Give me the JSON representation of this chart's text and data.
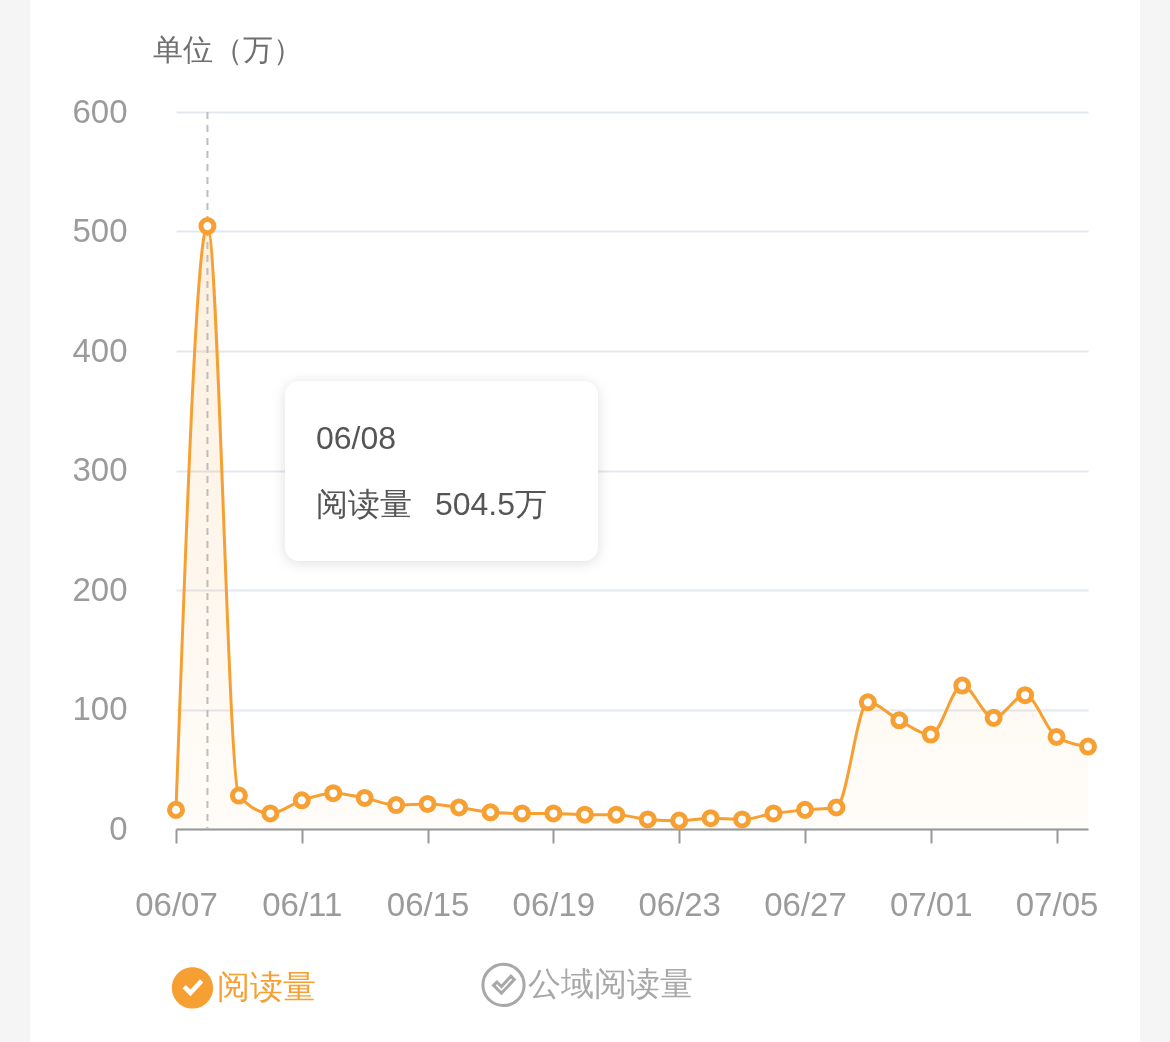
{
  "chart_data": {
    "type": "area",
    "ylabel": "单位（万）",
    "x": [
      "--06-07",
      "--06-08",
      "--06-09",
      "--06-10",
      "--06-11",
      "--06-12",
      "--06-13",
      "--06-14",
      "--06-15",
      "--06-16",
      "--06-17",
      "--06-18",
      "--06-19",
      "--06-20",
      "--06-21",
      "--06-22",
      "--06-23",
      "--06-24",
      "--06-25",
      "--06-26",
      "--06-27",
      "--06-28",
      "--06-29",
      "--06-30",
      "--07-01",
      "--07-02",
      "--07-03",
      "--07-04",
      "--07-05",
      "--07-06"
    ],
    "series": [
      {
        "name": "阅读量",
        "color": "#f6a033",
        "values": [
          16,
          504.5,
          28,
          13,
          24,
          30,
          26,
          20,
          21,
          18,
          14,
          13,
          13,
          12,
          12,
          8,
          7,
          9,
          8,
          13,
          16,
          18,
          106,
          91,
          79,
          120,
          93,
          112,
          77,
          69
        ]
      },
      {
        "name": "公域阅读量",
        "color": "#a8a8a8",
        "values": [
          null,
          null,
          null,
          null,
          null,
          null,
          null,
          null,
          null,
          null,
          null,
          null,
          null,
          null,
          null,
          null,
          null,
          null,
          null,
          null,
          null,
          null,
          null,
          null,
          null,
          null,
          null,
          null,
          null,
          null
        ]
      }
    ],
    "xlim": [
      "--06-07",
      "--07-06"
    ],
    "xticks": [
      {
        "value": "--06-07",
        "label": "06/07"
      },
      {
        "value": "--06-11",
        "label": "06/11"
      },
      {
        "value": "--06-15",
        "label": "06/15"
      },
      {
        "value": "--06-19",
        "label": "06/19"
      },
      {
        "value": "--06-23",
        "label": "06/23"
      },
      {
        "value": "--06-27",
        "label": "06/27"
      },
      {
        "value": "--07-01",
        "label": "07/01"
      },
      {
        "value": "--07-05",
        "label": "07/05"
      }
    ],
    "ylim": [
      0,
      600
    ],
    "yticks": [
      0,
      100,
      200,
      300,
      400,
      500,
      600
    ],
    "grid": "y",
    "legend": "bottom",
    "marker": "circle",
    "line_style": "solid",
    "ref_lines": [
      {
        "axis": "x",
        "value": "--06-08",
        "color": "#bdbdbd",
        "line_style": "dashed"
      }
    ],
    "annotations": [
      "06/08",
      "阅读量 504.5万"
    ]
  }
}
